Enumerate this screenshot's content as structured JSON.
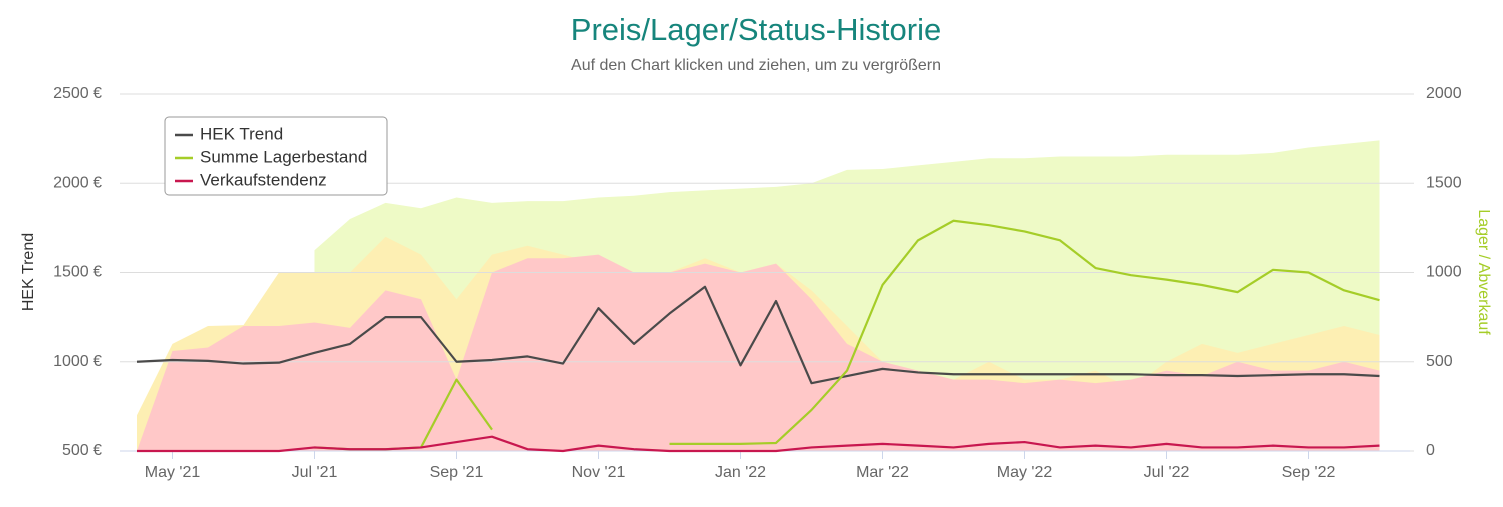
{
  "chart_data": {
    "type": "line",
    "title": "Preis/Lager/Status-Historie",
    "subtitle": "Auf den Chart klicken und ziehen, um zu vergrößern",
    "y_label": "HEK Trend",
    "y2_label": "Lager / Abverkauf",
    "categories": [
      null,
      "May '21",
      null,
      null,
      null,
      "Jul '21",
      null,
      null,
      null,
      "Sep '21",
      null,
      null,
      null,
      "Nov '21",
      null,
      null,
      null,
      "Jan '22",
      null,
      null,
      null,
      "Mar '22",
      null,
      null,
      null,
      "May '22",
      null,
      null,
      null,
      "Jul '22",
      null,
      null,
      null,
      "Sep '22",
      null,
      null
    ],
    "ylim": [
      500,
      2500
    ],
    "yticks": [
      {
        "value": 500,
        "label": "500 €"
      },
      {
        "value": 1000,
        "label": "1000 €"
      },
      {
        "value": 1500,
        "label": "1500 €"
      },
      {
        "value": 2000,
        "label": "2000 €"
      },
      {
        "value": 2500,
        "label": "2500 €"
      }
    ],
    "y2lim": [
      0,
      2000
    ],
    "y2ticks": [
      0,
      500,
      1000,
      1500,
      2000
    ],
    "grid": true,
    "legend": "top-left",
    "series": [
      {
        "name": "HEK Trend",
        "color": "#4a4a4a",
        "axis": "y",
        "values": [
          1000,
          1010,
          1005,
          990,
          995,
          1050,
          1100,
          1250,
          1250,
          1000,
          1010,
          1030,
          990,
          1300,
          1100,
          1270,
          1420,
          980,
          1340,
          880,
          920,
          960,
          940,
          930,
          930,
          930,
          930,
          930,
          930,
          925,
          925,
          920,
          925,
          930,
          930,
          920
        ]
      },
      {
        "name": "Summe Lagerbestand",
        "color": "#a5cd28",
        "axis": "y2",
        "values": [
          null,
          null,
          null,
          null,
          null,
          20,
          10,
          10,
          20,
          400,
          120,
          null,
          null,
          40,
          null,
          40,
          40,
          40,
          45,
          230,
          450,
          930,
          1180,
          1290,
          1265,
          1230,
          1180,
          1025,
          985,
          960,
          930,
          890,
          1015,
          1000,
          900,
          845
        ]
      },
      {
        "name": "Verkaufstendenz",
        "color": "#c8174f",
        "axis": "y2",
        "values": [
          0,
          0,
          0,
          0,
          0,
          20,
          10,
          10,
          20,
          50,
          80,
          10,
          0,
          30,
          10,
          0,
          0,
          0,
          0,
          20,
          30,
          40,
          30,
          20,
          40,
          50,
          20,
          30,
          20,
          40,
          20,
          20,
          30,
          20,
          20,
          30
        ]
      }
    ],
    "areas": [
      {
        "color": "#eefac6",
        "axis": "y2",
        "values": [
          null,
          null,
          null,
          null,
          null,
          1125,
          1300,
          1390,
          1360,
          1420,
          1390,
          1400,
          1400,
          1420,
          1430,
          1450,
          1460,
          1470,
          1480,
          1500,
          1575,
          1580,
          1600,
          1620,
          1640,
          1640,
          1650,
          1650,
          1650,
          1660,
          1660,
          1660,
          1670,
          1700,
          1720,
          1740
        ]
      },
      {
        "color": "#fdefb3",
        "axis": "y2",
        "values": [
          200,
          600,
          700,
          705,
          1000,
          1000,
          1000,
          1200,
          1100,
          850,
          1100,
          1150,
          1100,
          1050,
          1000,
          1000,
          1080,
          1000,
          1050,
          900,
          700,
          500,
          450,
          400,
          500,
          400,
          400,
          450,
          350,
          500,
          600,
          550,
          600,
          650,
          700,
          650
        ]
      },
      {
        "color": "#ffc8c8",
        "axis": "y2",
        "values": [
          0,
          560,
          580,
          700,
          700,
          720,
          690,
          900,
          850,
          400,
          1000,
          1080,
          1080,
          1100,
          1000,
          1000,
          1050,
          1000,
          1050,
          850,
          600,
          500,
          450,
          400,
          400,
          380,
          400,
          380,
          400,
          450,
          420,
          500,
          450,
          450,
          500,
          450
        ]
      }
    ]
  }
}
